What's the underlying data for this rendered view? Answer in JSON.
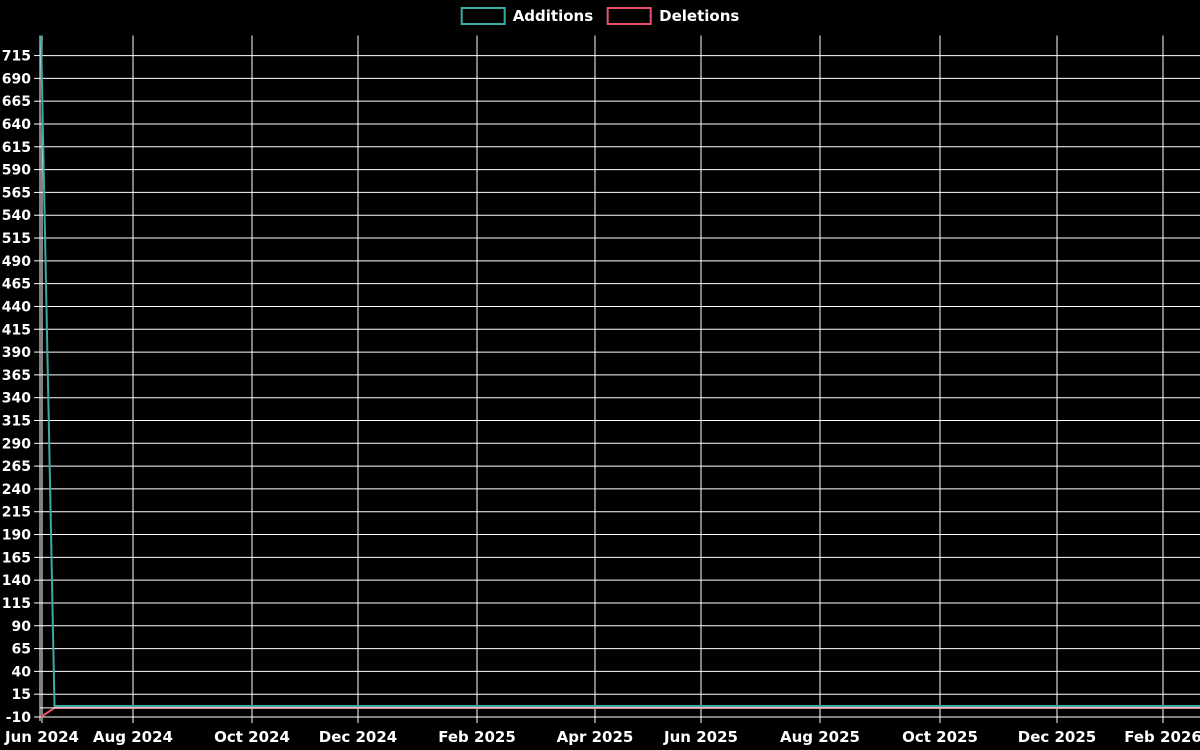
{
  "legend": {
    "items": [
      {
        "label": "Additions",
        "color": "#3BACA4"
      },
      {
        "label": "Deletions",
        "color": "#E8506B"
      }
    ]
  },
  "chart_data": {
    "type": "line",
    "title": "",
    "legend_position": "top",
    "background": "#000000",
    "grid": true,
    "grid_color": "#ffffff",
    "text_color": "#ffffff",
    "xlabel": "",
    "ylabel": "",
    "ylim": [
      -10,
      737
    ],
    "x_tick_labels": [
      "Jun 2024",
      "Aug 2024",
      "Oct 2024",
      "Dec 2024",
      "Feb 2025",
      "Apr 2025",
      "Jun 2025",
      "Aug 2025",
      "Oct 2025",
      "Dec 2025",
      "Feb 2026"
    ],
    "y_tick_labels": [
      -10,
      15,
      40,
      65,
      90,
      115,
      140,
      165,
      190,
      215,
      240,
      265,
      290,
      315,
      340,
      365,
      390,
      415,
      440,
      465,
      490,
      515,
      540,
      565,
      590,
      615,
      640,
      665,
      690,
      715
    ],
    "series": [
      {
        "name": "Additions",
        "color": "#3BACA4",
        "points": [
          {
            "x": "early Jun 2024",
            "y": 737
          },
          {
            "x": "mid Jun 2024",
            "y": 2
          },
          {
            "x": "Feb 2026",
            "y": 2
          }
        ]
      },
      {
        "name": "Deletions",
        "color": "#E8506B",
        "points": [
          {
            "x": "early Jun 2024",
            "y": -10
          },
          {
            "x": "mid Jun 2024",
            "y": 0
          },
          {
            "x": "Feb 2026",
            "y": 0
          }
        ]
      }
    ]
  }
}
